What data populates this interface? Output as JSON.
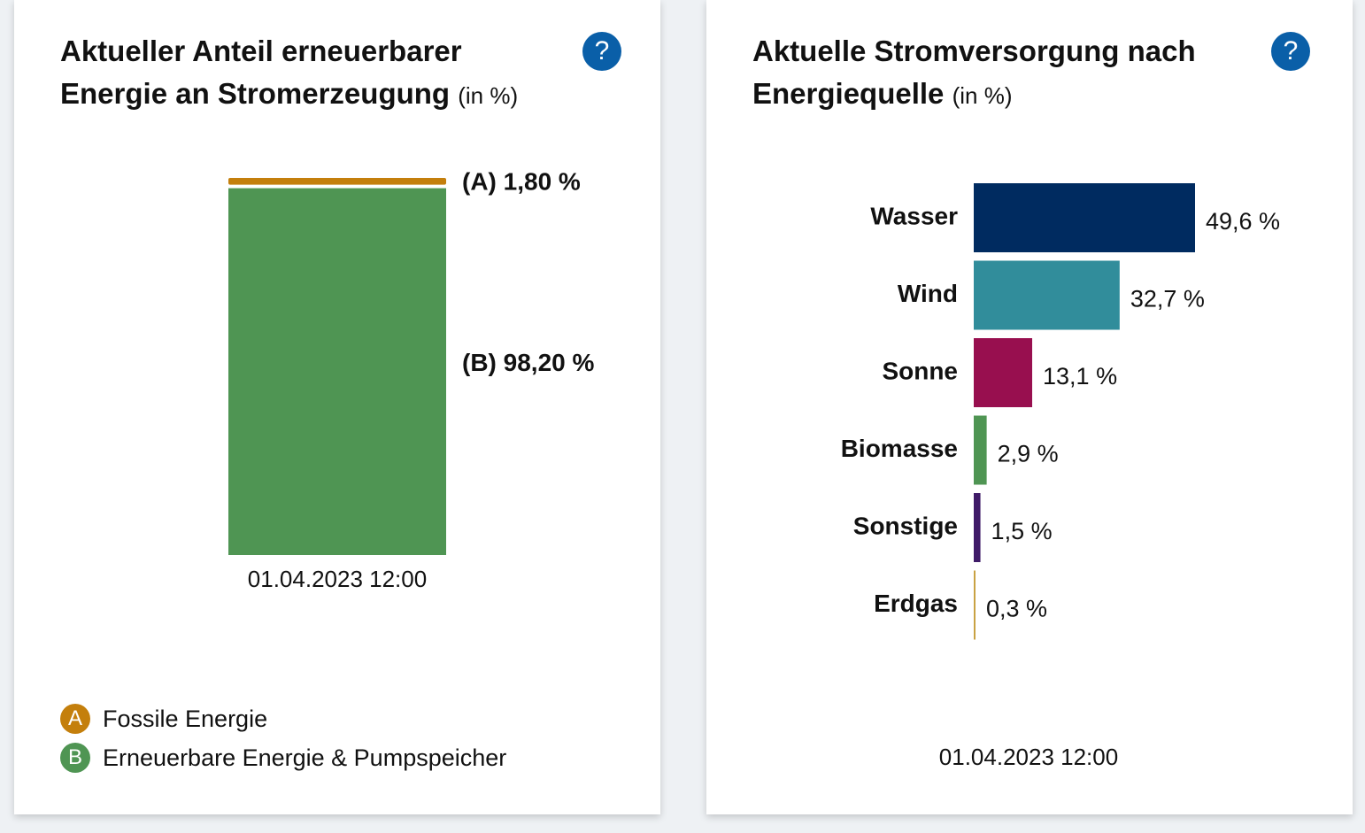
{
  "left_panel": {
    "title": "Aktueller Anteil erneuerbarer Energie an Stromerzeugung",
    "unit": "(in %)",
    "help_icon": "?",
    "timestamp": "01.04.2023 12:00",
    "legend": [
      {
        "badge": "A",
        "label": "Fossile Energie",
        "color": "#c47f0c"
      },
      {
        "badge": "B",
        "label": "Erneuerbare Energie & Pumpspeicher",
        "color": "#4f9553"
      }
    ]
  },
  "right_panel": {
    "title": "Aktuelle Stromversorgung nach Energiequelle",
    "unit": "(in %)",
    "help_icon": "?",
    "timestamp": "01.04.2023 12:00"
  },
  "chart_data": [
    {
      "type": "bar",
      "stacked": true,
      "title": "Aktueller Anteil erneuerbarer Energie an Stromerzeugung",
      "unit": "(in %)",
      "categories": [
        "01.04.2023 12:00"
      ],
      "ylim": [
        0,
        100
      ],
      "grid": false,
      "legend": "bottom-left",
      "series": [
        {
          "name": "Fossile Energie",
          "values": [
            1.8
          ],
          "color": "#c47f0c",
          "label": "(A) 1,80 %"
        },
        {
          "name": "Erneuerbare Energie & Pumpspeicher",
          "values": [
            98.2
          ],
          "color": "#4f9553",
          "label": "(B) 98,20 %"
        }
      ]
    },
    {
      "type": "bar",
      "orientation": "horizontal",
      "title": "Aktuelle Stromversorgung nach Energiequelle",
      "unit": "(in %)",
      "grid": false,
      "categories": [
        "Wasser",
        "Wind",
        "Sonne",
        "Biomasse",
        "Sonstige",
        "Erdgas"
      ],
      "values": [
        49.6,
        32.7,
        13.1,
        2.9,
        1.5,
        0.3
      ],
      "value_labels": [
        "49,6 %",
        "32,7 %",
        "13,1 %",
        "2,9 %",
        "1,5 %",
        "0,3 %"
      ],
      "colors": [
        "#002b60",
        "#318d9b",
        "#980f4f",
        "#4f9553",
        "#3f1b68",
        "#c9a243"
      ]
    }
  ]
}
